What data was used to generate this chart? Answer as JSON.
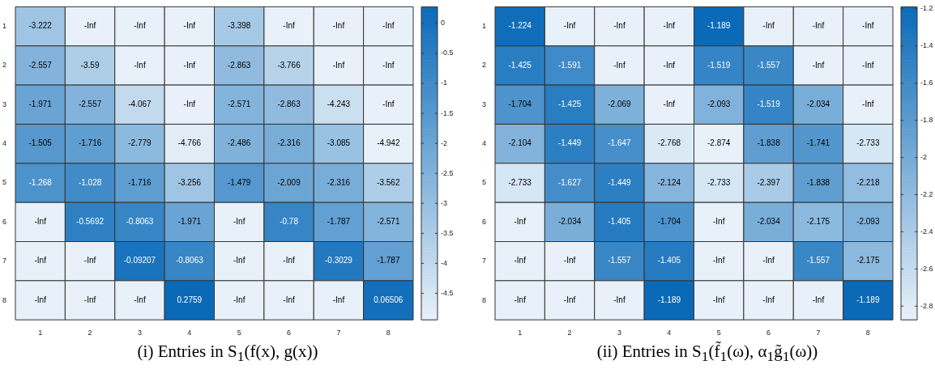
{
  "chart_data": [
    {
      "type": "heatmap",
      "title": "(i) Entries in S$_{1}$(f(x), g(x))",
      "categories": [
        "1",
        "2",
        "3",
        "4",
        "5",
        "6",
        "7",
        "8"
      ],
      "y_categories": [
        "1",
        "2",
        "3",
        "4",
        "5",
        "6",
        "7",
        "8"
      ],
      "cells": [
        [
          -3.222,
          null,
          null,
          null,
          -3.398,
          null,
          null,
          null
        ],
        [
          -2.557,
          -3.59,
          null,
          null,
          -2.863,
          -3.766,
          null,
          null
        ],
        [
          -1.971,
          -2.557,
          -4.067,
          null,
          -2.571,
          -2.863,
          -4.243,
          null
        ],
        [
          -1.505,
          -1.716,
          -2.779,
          -4.766,
          -2.486,
          -2.316,
          -3.085,
          -4.942
        ],
        [
          -1.268,
          -1.028,
          -1.716,
          -3.256,
          -1.479,
          -2.009,
          -2.316,
          -3.562
        ],
        [
          null,
          -0.5692,
          -0.8063,
          -1.971,
          null,
          -0.78,
          -1.787,
          -2.571
        ],
        [
          null,
          null,
          -0.09207,
          -0.8063,
          null,
          null,
          -0.3029,
          -1.787
        ],
        [
          null,
          null,
          null,
          0.2759,
          null,
          null,
          null,
          0.06506
        ]
      ],
      "cell_labels": [
        [
          "-3.222",
          "-Inf",
          "-Inf",
          "-Inf",
          "-3.398",
          "-Inf",
          "-Inf",
          "-Inf"
        ],
        [
          "-2.557",
          "-3.59",
          "-Inf",
          "-Inf",
          "-2.863",
          "-3.766",
          "-Inf",
          "-Inf"
        ],
        [
          "-1.971",
          "-2.557",
          "-4.067",
          "-Inf",
          "-2.571",
          "-2.863",
          "-4.243",
          "-Inf"
        ],
        [
          "-1.505",
          "-1.716",
          "-2.779",
          "-4.766",
          "-2.486",
          "-2.316",
          "-3.085",
          "-4.942"
        ],
        [
          "-1.268",
          "-1.028",
          "-1.716",
          "-3.256",
          "-1.479",
          "-2.009",
          "-2.316",
          "-3.562"
        ],
        [
          "-Inf",
          "-0.5692",
          "-0.8063",
          "-1.971",
          "-Inf",
          "-0.78",
          "-1.787",
          "-2.571"
        ],
        [
          "-Inf",
          "-Inf",
          "-0.09207",
          "-0.8063",
          "-Inf",
          "-Inf",
          "-0.3029",
          "-1.787"
        ],
        [
          "-Inf",
          "-Inf",
          "-Inf",
          "0.2759",
          "-Inf",
          "-Inf",
          "-Inf",
          "0.06506"
        ]
      ],
      "clim": [
        -4.942,
        0.2759
      ],
      "cticks": [
        0,
        -0.5,
        -1,
        -1.5,
        -2,
        -2.5,
        -3,
        -3.5,
        -4,
        -4.5
      ]
    },
    {
      "type": "heatmap",
      "title": "(ii) Entries in S$_{1}$(f̃$_{1}$(ω), α$_{1}$g̃$_{1}$(ω))",
      "categories": [
        "1",
        "2",
        "3",
        "4",
        "5",
        "6",
        "7",
        "8"
      ],
      "y_categories": [
        "1",
        "2",
        "3",
        "4",
        "5",
        "6",
        "7",
        "8"
      ],
      "cells": [
        [
          -1.224,
          null,
          null,
          null,
          -1.189,
          null,
          null,
          null
        ],
        [
          -1.425,
          -1.591,
          null,
          null,
          -1.519,
          -1.557,
          null,
          null
        ],
        [
          -1.704,
          -1.425,
          -2.069,
          null,
          -2.093,
          -1.519,
          -2.034,
          null
        ],
        [
          -2.104,
          -1.449,
          -1.647,
          -2.768,
          -2.874,
          -1.838,
          -1.741,
          -2.733
        ],
        [
          -2.733,
          -1.627,
          -1.449,
          -2.124,
          -2.733,
          -2.397,
          -1.838,
          -2.218
        ],
        [
          null,
          -2.034,
          -1.405,
          -1.704,
          null,
          -2.034,
          -2.175,
          -2.093
        ],
        [
          null,
          null,
          -1.557,
          -1.405,
          null,
          null,
          -1.557,
          -2.175
        ],
        [
          null,
          null,
          null,
          -1.189,
          null,
          null,
          null,
          -1.189
        ]
      ],
      "cell_labels": [
        [
          "-1.224",
          "-Inf",
          "-Inf",
          "-Inf",
          "-1.189",
          "-Inf",
          "-Inf",
          "-Inf"
        ],
        [
          "-1.425",
          "-1.591",
          "-Inf",
          "-Inf",
          "-1.519",
          "-1.557",
          "-Inf",
          "-Inf"
        ],
        [
          "-1.704",
          "-1.425",
          "-2.069",
          "-Inf",
          "-2.093",
          "-1.519",
          "-2.034",
          "-Inf"
        ],
        [
          "-2.104",
          "-1.449",
          "-1.647",
          "-2.768",
          "-2.874",
          "-1.838",
          "-1.741",
          "-2.733"
        ],
        [
          "-2.733",
          "-1.627",
          "-1.449",
          "-2.124",
          "-2.733",
          "-2.397",
          "-1.838",
          "-2.218"
        ],
        [
          "-Inf",
          "-2.034",
          "-1.405",
          "-1.704",
          "-Inf",
          "-2.034",
          "-2.175",
          "-2.093"
        ],
        [
          "-Inf",
          "-Inf",
          "-1.557",
          "-1.405",
          "-Inf",
          "-Inf",
          "-1.557",
          "-2.175"
        ],
        [
          "-Inf",
          "-Inf",
          "-Inf",
          "-1.189",
          "-Inf",
          "-Inf",
          "-Inf",
          "-1.189"
        ]
      ],
      "clim": [
        -2.874,
        -1.189
      ],
      "cticks": [
        -1.2,
        -1.4,
        -1.6,
        -1.8,
        -2,
        -2.2,
        -2.4,
        -2.6,
        -2.8
      ]
    }
  ]
}
